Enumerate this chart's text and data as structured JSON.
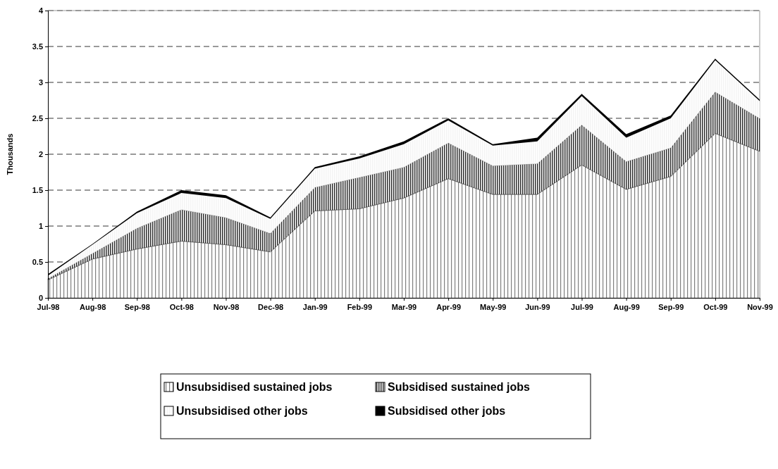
{
  "chart_data": {
    "type": "area",
    "stacked": true,
    "ylabel": "Thousands",
    "categories": [
      "Jul-98",
      "Aug-98",
      "Sep-98",
      "Oct-98",
      "Nov-98",
      "Dec-98",
      "Jan-99",
      "Feb-99",
      "Mar-99",
      "Apr-99",
      "May-99",
      "Jun-99",
      "Jul-99",
      "Aug-99",
      "Sep-99",
      "Oct-99",
      "Nov-99"
    ],
    "series": [
      {
        "name": "Unsubsidised sustained jobs",
        "color": "#808080",
        "values": [
          0.25,
          0.54,
          0.68,
          0.79,
          0.74,
          0.64,
          1.21,
          1.24,
          1.39,
          1.66,
          1.44,
          1.44,
          1.85,
          1.51,
          1.69,
          2.29,
          2.04
        ]
      },
      {
        "name": "Subsidised sustained jobs",
        "color": "#303030",
        "values": [
          0.02,
          0.08,
          0.29,
          0.44,
          0.38,
          0.26,
          0.33,
          0.44,
          0.43,
          0.5,
          0.4,
          0.43,
          0.56,
          0.39,
          0.4,
          0.58,
          0.46
        ]
      },
      {
        "name": "Unsubsidised other jobs",
        "color": "#f4f4f4",
        "values": [
          0.04,
          0.12,
          0.21,
          0.23,
          0.27,
          0.2,
          0.26,
          0.26,
          0.32,
          0.31,
          0.28,
          0.31,
          0.4,
          0.33,
          0.41,
          0.44,
          0.24
        ]
      },
      {
        "name": "Subsidised other jobs",
        "color": "#000000",
        "values": [
          0.02,
          0.01,
          0.02,
          0.04,
          0.04,
          0.02,
          0.02,
          0.03,
          0.04,
          0.03,
          0.02,
          0.05,
          0.03,
          0.05,
          0.04,
          0.02,
          0.02
        ]
      }
    ],
    "ylim": [
      0,
      4
    ],
    "yticks": [
      0,
      0.5,
      1,
      1.5,
      2,
      2.5,
      3,
      3.5,
      4
    ],
    "grid": "y",
    "legend": "bottom"
  }
}
